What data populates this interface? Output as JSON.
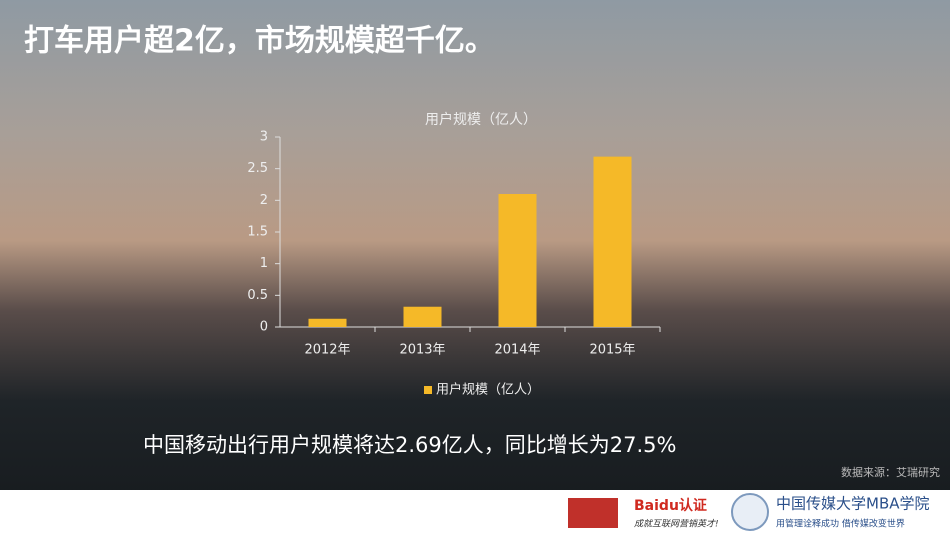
{
  "title": "打车用户超2亿，市场规模超千亿。",
  "chart_data": {
    "type": "bar",
    "title": "用户规模（亿人）",
    "categories": [
      "2012年",
      "2013年",
      "2014年",
      "2015年"
    ],
    "series": [
      {
        "name": "用户规模（亿人）",
        "color": "#f5b928",
        "values": [
          0.13,
          0.32,
          2.1,
          2.69
        ]
      }
    ],
    "ylim": [
      0,
      3
    ],
    "yticks": [
      0,
      0.5,
      1,
      1.5,
      2,
      2.5,
      3
    ],
    "grid": false,
    "legend": "bottom"
  },
  "note": "中国移动出行用户规模将达2.69亿人，同比增长为27.5%",
  "source": "数据来源：艾瑞研究",
  "footer": {
    "baidu": "Baidu认证",
    "baidu_slogan": "成就互联网营销英才!",
    "school": "中国传媒大学MBA学院",
    "school_slogan": "用管理诠释成功 借传媒改变世界"
  }
}
